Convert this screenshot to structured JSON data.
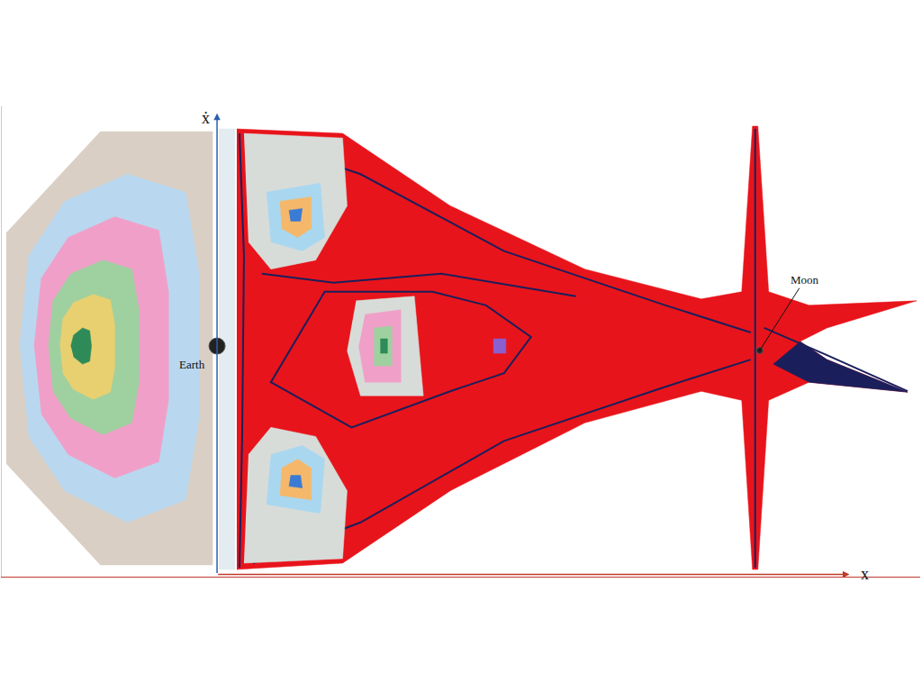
{
  "chart_data": {
    "type": "scatter",
    "x_label": "x",
    "y_label": "ẋ",
    "xlim": [
      -2.4,
      7.84
    ],
    "ylim": [
      -2.55,
      2.65
    ],
    "xticks": [],
    "yticks": [],
    "tick_labels": false,
    "grid": false,
    "series": [
      {
        "type": "area",
        "color": "#d9cfc4",
        "x": [
          -2.35,
          -1.3,
          -0.05,
          -0.05,
          -1.3,
          -2.35
        ],
        "y": [
          1.25,
          2.37,
          2.37,
          -2.42,
          -2.42,
          -1.3
        ]
      },
      {
        "type": "area",
        "color": "#b9d8f0",
        "x": [
          -2.2,
          -2.1,
          -1.7,
          -1.0,
          -0.35,
          -0.2,
          -0.2,
          -0.35,
          -1.0,
          -1.7,
          -2.1
        ],
        "y": [
          0,
          1.0,
          1.6,
          1.9,
          1.7,
          0.8,
          -0.8,
          -1.7,
          -1.95,
          -1.6,
          -1.0
        ]
      },
      {
        "type": "area",
        "color": "#f0a0c8",
        "x": [
          -2.04,
          -1.96,
          -1.66,
          -1.14,
          -0.65,
          -0.54,
          -0.54,
          -0.65,
          -1.14,
          -1.66,
          -1.96
        ],
        "y": [
          0,
          0.75,
          1.2,
          1.43,
          1.28,
          0.6,
          -0.6,
          -1.28,
          -1.46,
          -1.2,
          -0.75
        ]
      },
      {
        "type": "area",
        "color": "#9fd0a0",
        "x": [
          -1.88,
          -1.83,
          -1.63,
          -1.27,
          -0.95,
          -0.87,
          -0.87,
          -0.95,
          -1.27,
          -1.63,
          -1.83
        ],
        "y": [
          0,
          0.5,
          0.8,
          0.95,
          0.85,
          0.4,
          -0.4,
          -0.85,
          -0.98,
          -0.8,
          -0.5
        ]
      },
      {
        "type": "area",
        "color": "#e8d070",
        "x": [
          -1.75,
          -1.72,
          -1.6,
          -1.38,
          -1.19,
          -1.14,
          -1.14,
          -1.19,
          -1.38,
          -1.6,
          -1.72
        ],
        "y": [
          0,
          0.3,
          0.48,
          0.57,
          0.51,
          0.24,
          -0.24,
          -0.51,
          -0.59,
          -0.48,
          -0.3
        ]
      },
      {
        "type": "area",
        "color": "#2e8b57",
        "x": [
          -1.63,
          -1.6,
          -1.5,
          -1.42,
          -1.4,
          -1.42,
          -1.5,
          -1.6
        ],
        "y": [
          0,
          0.12,
          0.2,
          0.17,
          0,
          -0.17,
          -0.2,
          -0.12
        ]
      },
      {
        "type": "area",
        "color": "#e3ecf0",
        "x": [
          0.02,
          0.2,
          0.2,
          0.02
        ],
        "y": [
          2.4,
          2.4,
          -2.47,
          -2.47
        ]
      },
      {
        "type": "area",
        "color": "#e8141b",
        "x": [
          0.22,
          1.4,
          2.6,
          4.1,
          5.4,
          5.85,
          5.97,
          6.03,
          6.15,
          6.6,
          7.8,
          6.8,
          6.5,
          6.8,
          7.7,
          6.6,
          6.15,
          6.03,
          5.97,
          5.85,
          5.4,
          4.1,
          2.6,
          1.4,
          0.22
        ],
        "y": [
          2.4,
          2.35,
          1.55,
          0.85,
          0.52,
          0.6,
          2.43,
          2.43,
          0.6,
          0.45,
          0.5,
          0.2,
          0.05,
          -0.15,
          -0.51,
          -0.4,
          -0.6,
          -2.47,
          -2.47,
          -0.6,
          -0.5,
          -0.85,
          -1.6,
          -2.4,
          -2.47
        ]
      },
      {
        "type": "area",
        "color": "#1a1f5c",
        "x": [
          6.5,
          6.8,
          7.7,
          6.6,
          6.2
        ],
        "y": [
          0.05,
          -0.15,
          -0.51,
          -0.4,
          -0.2
        ]
      },
      {
        "type": "line",
        "color": "#1a1f5c",
        "line_style": "solid",
        "x": [
          0.25,
          0.3,
          0.28,
          0.25
        ],
        "y": [
          2.35,
          1.0,
          -1.0,
          -2.45
        ]
      },
      {
        "type": "line",
        "color": "#1a1f5c",
        "line_style": "solid",
        "x": [
          0.4,
          1.6,
          3.2,
          5.0,
          5.95
        ],
        "y": [
          2.3,
          1.9,
          1.05,
          0.45,
          0.15
        ]
      },
      {
        "type": "line",
        "color": "#1a1f5c",
        "line_style": "solid",
        "x": [
          0.4,
          1.6,
          3.2,
          5.0,
          5.95
        ],
        "y": [
          -2.4,
          -1.95,
          -1.05,
          -0.45,
          -0.15
        ]
      },
      {
        "type": "line",
        "color": "#1a1f5c",
        "line_style": "solid",
        "x": [
          2.4,
          3.0,
          3.5,
          3.2,
          2.6,
          1.5,
          0.6,
          1.2,
          2.4
        ],
        "y": [
          0.6,
          0.45,
          0.1,
          -0.3,
          -0.5,
          -0.9,
          -0.4,
          0.6,
          0.6
        ]
      },
      {
        "type": "line",
        "color": "#1a1f5c",
        "line_style": "solid",
        "x": [
          0.5,
          1.3,
          2.5,
          4.0
        ],
        "y": [
          0.8,
          0.7,
          0.8,
          0.55
        ]
      },
      {
        "type": "line",
        "color": "#1a1f5c",
        "line_style": "solid",
        "x": [
          6.0,
          6.0
        ],
        "y": [
          2.4,
          -2.45
        ]
      },
      {
        "type": "line",
        "color": "#1a1f5c",
        "line_style": "solid",
        "x": [
          6.1,
          6.8,
          7.7
        ],
        "y": [
          0.2,
          -0.1,
          -0.5
        ]
      },
      {
        "type": "area",
        "color": "#d8dcd8",
        "x": [
          0.3,
          1.4,
          1.45,
          1.1,
          0.6,
          0.35
        ],
        "y": [
          2.35,
          2.3,
          1.55,
          0.95,
          0.85,
          1.15
        ]
      },
      {
        "type": "area",
        "color": "#a9d7f0",
        "x": [
          0.55,
          1.15,
          1.2,
          0.95,
          0.6
        ],
        "y": [
          1.7,
          1.8,
          1.2,
          1.05,
          1.15
        ]
      },
      {
        "type": "area",
        "color": "#f5b86a",
        "x": [
          0.7,
          1.05,
          1.05,
          0.9,
          0.72
        ],
        "y": [
          1.6,
          1.65,
          1.3,
          1.2,
          1.3
        ]
      },
      {
        "type": "area",
        "color": "#3a7bd5",
        "x": [
          0.8,
          0.95,
          0.93,
          0.82
        ],
        "y": [
          1.5,
          1.52,
          1.38,
          1.38
        ]
      },
      {
        "type": "area",
        "color": "#d8dcd8",
        "x": [
          0.3,
          1.4,
          1.45,
          1.1,
          0.6,
          0.35
        ],
        "y": [
          -2.4,
          -2.35,
          -1.6,
          -1.0,
          -0.9,
          -1.2
        ]
      },
      {
        "type": "area",
        "color": "#a9d7f0",
        "x": [
          0.55,
          1.15,
          1.2,
          0.95,
          0.6
        ],
        "y": [
          -1.75,
          -1.85,
          -1.25,
          -1.1,
          -1.2
        ]
      },
      {
        "type": "area",
        "color": "#f5b86a",
        "x": [
          0.7,
          1.05,
          1.05,
          0.9,
          0.72
        ],
        "y": [
          -1.65,
          -1.7,
          -1.35,
          -1.25,
          -1.35
        ]
      },
      {
        "type": "area",
        "color": "#3a7bd5",
        "x": [
          0.8,
          0.95,
          0.93,
          0.82
        ],
        "y": [
          -1.55,
          -1.57,
          -1.43,
          -1.43
        ]
      },
      {
        "type": "area",
        "color": "#d8dcd8",
        "x": [
          1.55,
          2.2,
          2.3,
          1.6,
          1.45
        ],
        "y": [
          0.5,
          0.55,
          -0.55,
          -0.55,
          -0.05
        ]
      },
      {
        "type": "area",
        "color": "#f0a0c8",
        "x": [
          1.65,
          2.05,
          2.05,
          1.65,
          1.58
        ],
        "y": [
          0.35,
          0.4,
          -0.4,
          -0.4,
          0
        ]
      },
      {
        "type": "area",
        "color": "#9fd0a0",
        "x": [
          1.75,
          1.95,
          1.95,
          1.75
        ],
        "y": [
          0.2,
          0.22,
          -0.22,
          -0.22
        ]
      },
      {
        "type": "area",
        "color": "#2e8b57",
        "x": [
          1.82,
          1.9,
          1.9,
          1.82
        ],
        "y": [
          0.08,
          0.08,
          -0.08,
          -0.08
        ]
      },
      {
        "type": "area",
        "color": "#8a5fd0",
        "x": [
          3.08,
          3.22,
          3.22,
          3.08
        ],
        "y": [
          0.08,
          0.08,
          -0.08,
          -0.08
        ]
      },
      {
        "type": "scatter",
        "color": "#222222",
        "marker": "circle",
        "x": [
          0.0
        ],
        "y": [
          0.0
        ]
      },
      {
        "type": "scatter",
        "color": "#222222",
        "marker": "circle",
        "x": [
          6.05
        ],
        "y": [
          -0.05
        ]
      }
    ],
    "annotations": [
      {
        "text": "Earth",
        "x": -0.28,
        "y": -0.2
      },
      {
        "text": "Moon",
        "x": 6.55,
        "y": 0.73,
        "arrow_x": 6.05,
        "arrow_y": -0.05
      }
    ]
  }
}
